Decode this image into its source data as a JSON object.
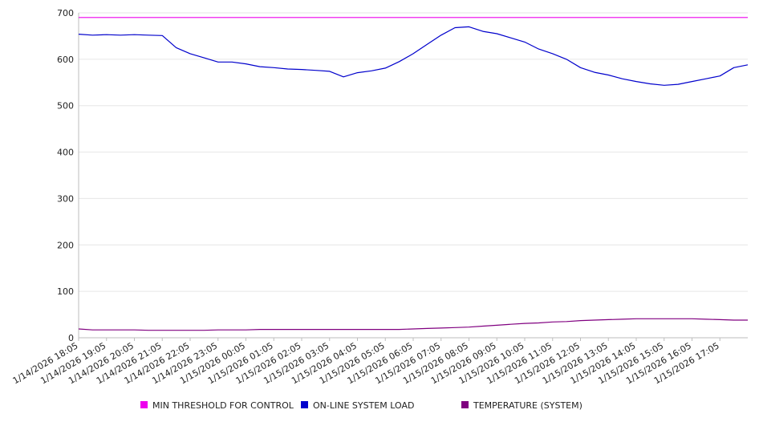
{
  "chart_data": {
    "type": "line",
    "title": "",
    "xlabel": "",
    "ylabel": "",
    "ylim": [
      0,
      700
    ],
    "y_ticks": [
      0,
      100,
      200,
      300,
      400,
      500,
      600,
      700
    ],
    "grid": true,
    "legend_position": "bottom",
    "x_tick_labels": [
      "1/14/2026 18:05",
      "1/14/2026 19:05",
      "1/14/2026 20:05",
      "1/14/2026 21:05",
      "1/14/2026 22:05",
      "1/14/2026 23:05",
      "1/15/2026 00:05",
      "1/15/2026 01:05",
      "1/15/2026 02:05",
      "1/15/2026 03:05",
      "1/15/2026 04:05",
      "1/15/2026 05:05",
      "1/15/2026 06:05",
      "1/15/2026 07:05",
      "1/15/2026 08:05",
      "1/15/2026 09:05",
      "1/15/2026 10:05",
      "1/15/2026 11:05",
      "1/15/2026 12:05",
      "1/15/2026 13:05",
      "1/15/2026 14:05",
      "1/15/2026 15:05",
      "1/15/2026 16:05",
      "1/15/2026 17:05"
    ],
    "x_hours": [
      0,
      0.5,
      1,
      1.5,
      2,
      2.5,
      3,
      3.5,
      4,
      4.5,
      5,
      5.5,
      6,
      6.5,
      7,
      7.5,
      8,
      8.5,
      9,
      9.5,
      10,
      10.5,
      11,
      11.5,
      12,
      12.5,
      13,
      13.5,
      14,
      14.5,
      15,
      15.5,
      16,
      16.5,
      17,
      17.5,
      18,
      18.5,
      19,
      19.5,
      20,
      20.5,
      21,
      21.5,
      22,
      22.5,
      23,
      23.5,
      24
    ],
    "series": [
      {
        "name": "MIN THRESHOLD FOR CONTROL",
        "color": "#ee00ee",
        "values": [
          690,
          690,
          690,
          690,
          690,
          690,
          690,
          690,
          690,
          690,
          690,
          690,
          690,
          690,
          690,
          690,
          690,
          690,
          690,
          690,
          690,
          690,
          690,
          690,
          690,
          690,
          690,
          690,
          690,
          690,
          690,
          690,
          690,
          690,
          690,
          690,
          690,
          690,
          690,
          690,
          690,
          690,
          690,
          690,
          690,
          690,
          690,
          690,
          690
        ]
      },
      {
        "name": "ON-LINE SYSTEM LOAD",
        "color": "#0000cc",
        "values": [
          654,
          652,
          653,
          652,
          653,
          652,
          651,
          625,
          612,
          603,
          594,
          594,
          590,
          584,
          582,
          579,
          578,
          576,
          574,
          562,
          571,
          575,
          581,
          595,
          612,
          632,
          652,
          668,
          670,
          660,
          655,
          646,
          637,
          622,
          612,
          600,
          582,
          572,
          566,
          558,
          552,
          547,
          544,
          546,
          552,
          558,
          564,
          582,
          588
        ]
      },
      {
        "name": "TEMPERATURE (SYSTEM)",
        "color": "#800080",
        "values": [
          19,
          17,
          17,
          17,
          17,
          16,
          16,
          16,
          16,
          16,
          17,
          17,
          17,
          18,
          18,
          18,
          18,
          18,
          18,
          18,
          18,
          18,
          18,
          18,
          19,
          20,
          21,
          22,
          23,
          25,
          27,
          29,
          31,
          32,
          34,
          35,
          37,
          38,
          39,
          40,
          41,
          41,
          41,
          41,
          41,
          40,
          39,
          38,
          38
        ]
      }
    ]
  }
}
